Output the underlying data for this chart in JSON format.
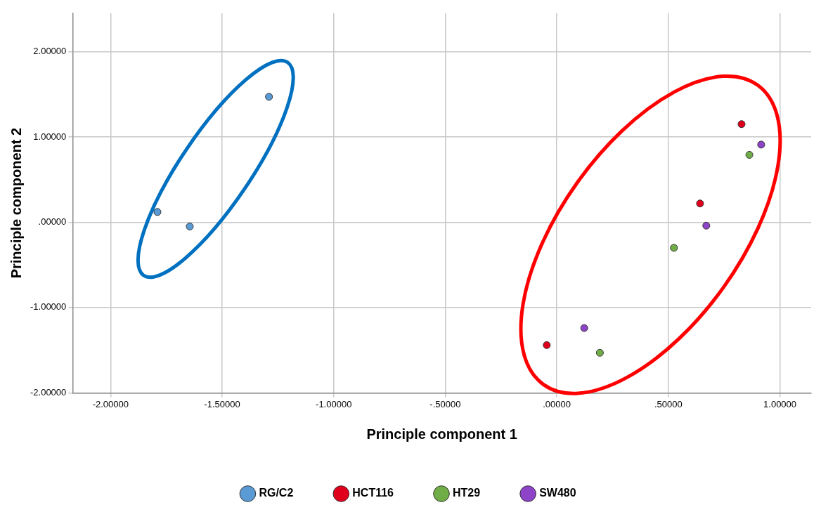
{
  "chart_data": {
    "type": "scatter",
    "xlabel": "Principle component 1",
    "ylabel": "Principle component 2",
    "series": [
      {
        "name": "RG/C2",
        "color": "#5b9bd5",
        "x": [
          -1.79,
          -1.645,
          -1.29
        ],
        "values": [
          0.12,
          -0.05,
          1.47
        ]
      },
      {
        "name": "HCT116",
        "color": "#e0001b",
        "x": [
          -0.045,
          0.642,
          0.828
        ],
        "values": [
          -1.44,
          0.22,
          1.15
        ]
      },
      {
        "name": "HT29",
        "color": "#70ad47",
        "x": [
          0.193,
          0.525,
          0.863
        ],
        "values": [
          -1.53,
          -0.3,
          0.79
        ]
      },
      {
        "name": "SW480",
        "color": "#8e44c8",
        "x": [
          0.123,
          0.67,
          0.916
        ],
        "values": [
          -1.24,
          -0.04,
          0.91
        ]
      }
    ],
    "xlim": [
      -2.17,
      1.14
    ],
    "ylim": [
      -2,
      2.45
    ],
    "xticks": [
      {
        "value": -2,
        "label": "-2.00000"
      },
      {
        "value": -1.5,
        "label": "-1.50000"
      },
      {
        "value": -1,
        "label": "-1.00000"
      },
      {
        "value": -0.5,
        "label": "-.50000"
      },
      {
        "value": 0,
        "label": ".00000"
      },
      {
        "value": 0.5,
        "label": ".50000"
      },
      {
        "value": 1,
        "label": "1.00000"
      }
    ],
    "yticks": [
      {
        "value": -2,
        "label": "-2.00000"
      },
      {
        "value": -1,
        "label": "-1.00000"
      },
      {
        "value": 0,
        "label": ".00000"
      },
      {
        "value": 1,
        "label": "1.00000"
      },
      {
        "value": 2,
        "label": "2.00000"
      }
    ],
    "grid": true,
    "legend": "bottom",
    "marker": "circle"
  }
}
